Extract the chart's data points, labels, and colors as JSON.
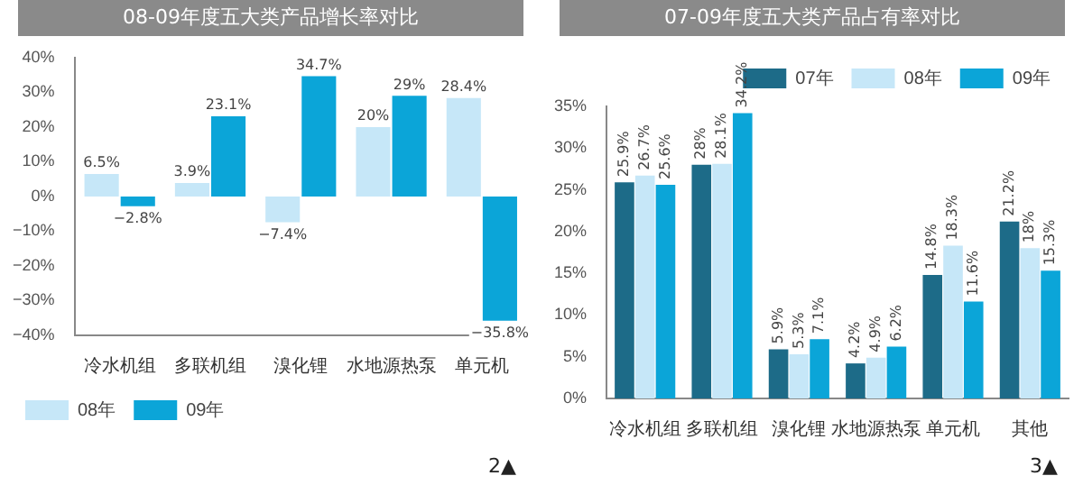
{
  "chart_data": [
    {
      "type": "bar",
      "title": "08-09年度五大类产品增长率对比",
      "categories": [
        "冷水机组",
        "多联机组",
        "溴化锂",
        "水地源热泵",
        "单元机"
      ],
      "series": [
        {
          "name": "08年",
          "color": "#c6e7f8",
          "values": [
            6.5,
            3.9,
            -7.4,
            20,
            28.4
          ],
          "value_labels": [
            "6.5%",
            "3.9%",
            "−7.4%",
            "20%",
            "28.4%"
          ]
        },
        {
          "name": "09年",
          "color": "#0ba5d8",
          "values": [
            -2.8,
            23.1,
            34.7,
            29,
            -35.8
          ],
          "value_labels": [
            "−2.8%",
            "23.1%",
            "34.7%",
            "29%",
            "−35.8%"
          ]
        }
      ],
      "ylim": [
        -40,
        40
      ],
      "yticks": [
        {
          "value": -40,
          "label": "−40%"
        },
        {
          "value": -30,
          "label": "−30%"
        },
        {
          "value": -20,
          "label": "−20%"
        },
        {
          "value": -10,
          "label": "−10%"
        },
        {
          "value": 0,
          "label": "0%"
        },
        {
          "value": 10,
          "label": "10%"
        },
        {
          "value": 20,
          "label": "20%"
        },
        {
          "value": 30,
          "label": "30%"
        },
        {
          "value": 40,
          "label": "40%"
        }
      ],
      "grid": false,
      "legend": "bottom left",
      "annotations": [
        "2▲"
      ]
    },
    {
      "type": "bar",
      "title": "07-09年度五大类产品占有率对比",
      "categories": [
        "冷水机组",
        "多联机组",
        "溴化锂",
        "水地源热泵",
        "单元机",
        "其他"
      ],
      "series": [
        {
          "name": "07年",
          "color": "#1d6b88",
          "values": [
            25.9,
            28,
            5.9,
            4.2,
            14.8,
            21.2
          ],
          "value_labels": [
            "25.9%",
            "28%",
            "5.9%",
            "4.2%",
            "14.8%",
            "21.2%"
          ]
        },
        {
          "name": "08年",
          "color": "#c6e7f8",
          "values": [
            26.7,
            28.1,
            5.3,
            4.9,
            18.3,
            18
          ],
          "value_labels": [
            "26.7%",
            "28.1%",
            "5.3%",
            "4.9%",
            "18.3%",
            "18%"
          ]
        },
        {
          "name": "09年",
          "color": "#0ba5d8",
          "values": [
            25.6,
            34.2,
            7.1,
            6.2,
            11.6,
            15.3
          ],
          "value_labels": [
            "25.6%",
            "34.2%",
            "7.1%",
            "6.2%",
            "11.6%",
            "15.3%"
          ]
        }
      ],
      "ylim": [
        0,
        35
      ],
      "yticks": [
        {
          "value": 0,
          "label": "0%"
        },
        {
          "value": 5,
          "label": "5%"
        },
        {
          "value": 10,
          "label": "10%"
        },
        {
          "value": 15,
          "label": "15%"
        },
        {
          "value": 20,
          "label": "20%"
        },
        {
          "value": 25,
          "label": "25%"
        },
        {
          "value": 30,
          "label": "30%"
        },
        {
          "value": 35,
          "label": "35%"
        }
      ],
      "grid": false,
      "legend": "top right",
      "annotations": [
        "3▲"
      ]
    }
  ]
}
